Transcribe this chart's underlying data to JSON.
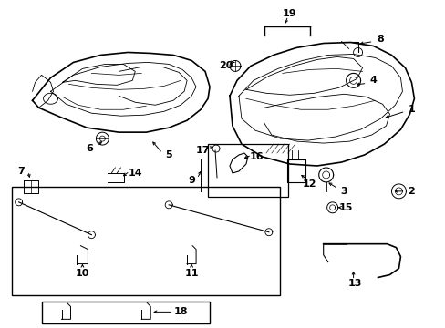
{
  "background_color": "#ffffff",
  "line_color": "#000000",
  "figure_width": 4.89,
  "figure_height": 3.6,
  "dpi": 100
}
